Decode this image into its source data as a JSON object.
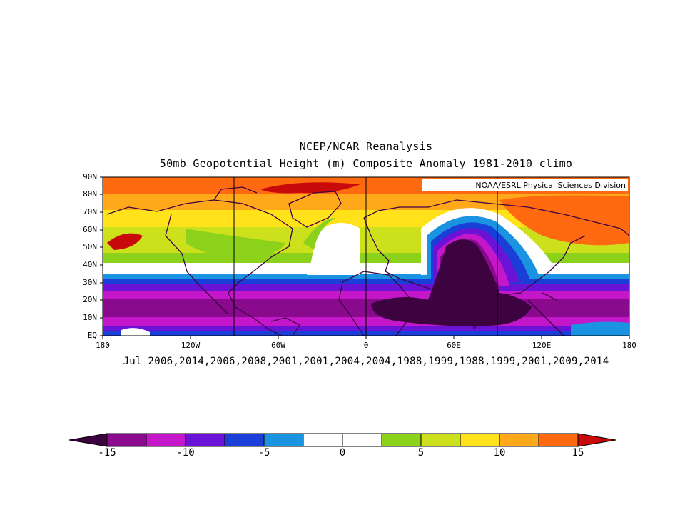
{
  "title_line1": "NCEP/NCAR Reanalysis",
  "title_line2": "50mb Geopotential Height (m) Composite Anomaly 1981-2010 climo",
  "credit": "NOAA/ESRL Physical Sciences Division",
  "composite_dates": "Jul 2006,2014,2006,2008,2001,2001,2004,2004,1988,1999,1988,1999,2001,2009,2014",
  "lat_ticks": [
    "90N",
    "80N",
    "70N",
    "60N",
    "50N",
    "40N",
    "30N",
    "20N",
    "10N",
    "EQ"
  ],
  "lon_ticks": [
    "180",
    "120W",
    "60W",
    "0",
    "60E",
    "120E",
    "180"
  ],
  "colorbar": {
    "tick_labels": [
      "-15",
      "-10",
      "-5",
      "0",
      "5",
      "10",
      "15"
    ],
    "colors": [
      "#3d0240",
      "#8a0a8e",
      "#c317c9",
      "#6a13d6",
      "#1a3ed8",
      "#1a93e0",
      "#ffffff",
      "#ffffff",
      "#8cd21a",
      "#cde01c",
      "#ffe21a",
      "#ffa81a",
      "#ff6a10",
      "#c80a0a"
    ]
  },
  "chart_data": {
    "type": "heatmap",
    "title": "NCEP/NCAR Reanalysis",
    "subtitle": "50mb Geopotential Height (m) Composite Anomaly 1981-2010 climo",
    "x_range": [
      -180,
      180
    ],
    "y_range": [
      0,
      90
    ],
    "value_range": [
      -15,
      15
    ],
    "contour_interval": 2.5,
    "lat_band_anomaly_m": [
      {
        "lat": 5,
        "value": -10
      },
      {
        "lat": 15,
        "value": -12
      },
      {
        "lat": 25,
        "value": -9
      },
      {
        "lat": 32,
        "value": -5
      },
      {
        "lat": 37,
        "value": 0
      },
      {
        "lat": 45,
        "value": 5
      },
      {
        "lat": 55,
        "value": 7
      },
      {
        "lat": 65,
        "value": 8
      },
      {
        "lat": 75,
        "value": 10
      },
      {
        "lat": 85,
        "value": 12
      }
    ],
    "features": [
      {
        "name": "negative anomaly center",
        "lon": 50,
        "lat": 35,
        "value": -15
      },
      {
        "name": "positive anomaly",
        "lon": -40,
        "lat": 87,
        "value": 15
      },
      {
        "name": "positive anomaly",
        "lon": -165,
        "lat": 57,
        "value": 15
      },
      {
        "name": "positive anomaly",
        "lon": 135,
        "lat": 65,
        "value": 12.5
      }
    ]
  }
}
